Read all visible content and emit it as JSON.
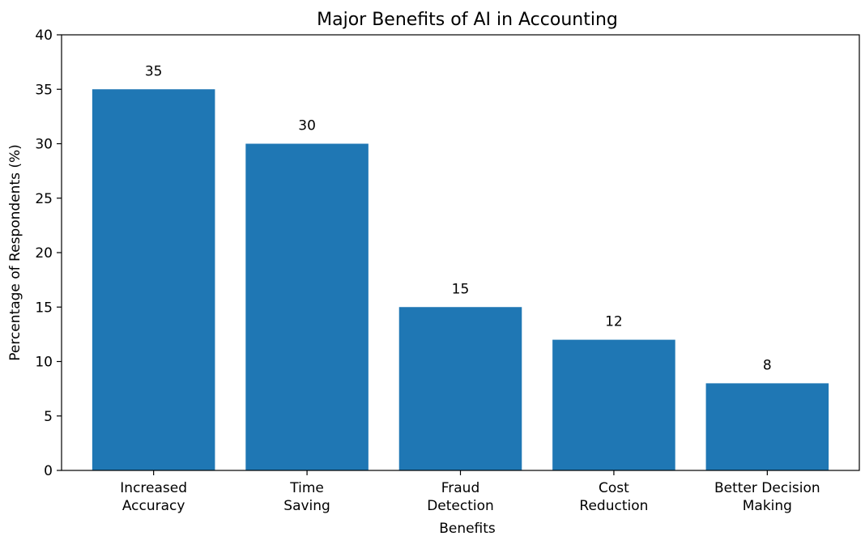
{
  "chart_data": {
    "type": "bar",
    "title": "Major Benefits of AI in Accounting",
    "xlabel": "Benefits",
    "ylabel": "Percentage of Respondents (%)",
    "categories": [
      [
        "Increased",
        "Accuracy"
      ],
      [
        "Time",
        "Saving"
      ],
      [
        "Fraud",
        "Detection"
      ],
      [
        "Cost",
        "Reduction"
      ],
      [
        "Better Decision",
        "Making"
      ]
    ],
    "values": [
      35,
      30,
      15,
      12,
      8
    ],
    "data_labels": [
      "35",
      "30",
      "15",
      "12",
      "8"
    ],
    "ylim": [
      0,
      40
    ],
    "yticks": [
      0,
      5,
      10,
      15,
      20,
      25,
      30,
      35,
      40
    ],
    "bar_color": "#1f77b4",
    "grid": false,
    "legend": "none"
  }
}
